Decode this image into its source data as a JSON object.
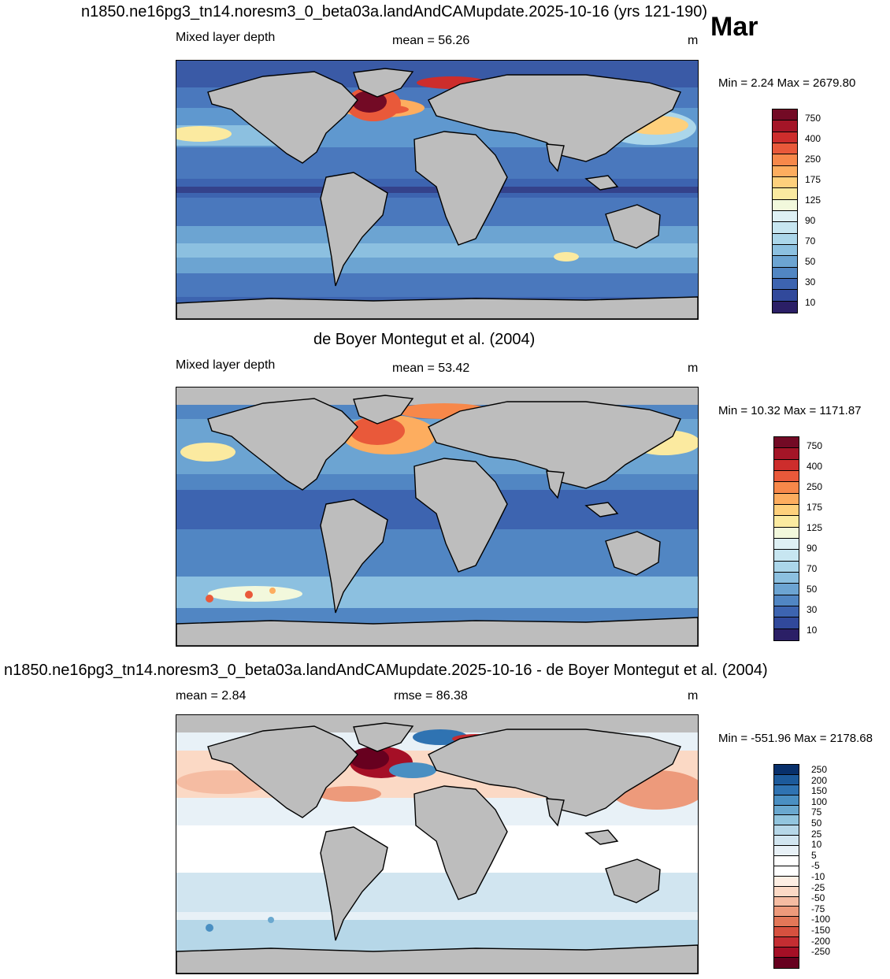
{
  "header": {
    "title": "n1850.ne16pg3_tn14.noresm3_0_beta03a.landAndCAMupdate.2025-10-16 (yrs 121-190)",
    "month": "Mar"
  },
  "panels": [
    {
      "title": "",
      "variable": "Mixed layer depth",
      "stat1": "mean =  56.26",
      "stat2": "",
      "units": "m",
      "minmax": "Min =   2.24 Max = 2679.80",
      "colorbar": {
        "colors": [
          "#2b1f66",
          "#31499b",
          "#3d64b0",
          "#5186c3",
          "#6ca4d2",
          "#8cc0e0",
          "#abd6ea",
          "#c7e6f1",
          "#def0f4",
          "#f2f8dc",
          "#fbeaa0",
          "#fed07c",
          "#fdad5f",
          "#f7884a",
          "#e9593a",
          "#cd2d2c",
          "#a41527",
          "#730a25"
        ],
        "labels": [
          "750",
          "400",
          "250",
          "175",
          "125",
          "90",
          "70",
          "50",
          "30",
          "10"
        ]
      }
    },
    {
      "title": "de Boyer Montegut et al. (2004)",
      "variable": "Mixed layer depth",
      "stat1": "mean =  53.42",
      "stat2": "",
      "units": "m",
      "minmax": "Min =  10.32 Max = 1171.87",
      "colorbar": {
        "colors": [
          "#2b1f66",
          "#31499b",
          "#3d64b0",
          "#5186c3",
          "#6ca4d2",
          "#8cc0e0",
          "#abd6ea",
          "#c7e6f1",
          "#def0f4",
          "#f2f8dc",
          "#fbeaa0",
          "#fed07c",
          "#fdad5f",
          "#f7884a",
          "#e9593a",
          "#cd2d2c",
          "#a41527",
          "#730a25"
        ],
        "labels": [
          "750",
          "400",
          "250",
          "175",
          "125",
          "90",
          "70",
          "50",
          "30",
          "10"
        ]
      }
    },
    {
      "title": "n1850.ne16pg3_tn14.noresm3_0_beta03a.landAndCAMupdate.2025-10-16 - de Boyer Montegut et al. (2004)",
      "variable": "",
      "stat1": "mean =   2.84",
      "stat2": "rmse =  86.38",
      "units": "m",
      "minmax": "Min = -551.96 Max = 2178.68",
      "colorbar": {
        "colors": [
          "#67001f",
          "#a50f26",
          "#c42d32",
          "#d6513f",
          "#e27758",
          "#ed9a7b",
          "#f5bca2",
          "#fbd9c5",
          "#fdeee3",
          "#ffffff",
          "#ffffff",
          "#e8f1f7",
          "#d1e5f0",
          "#b6d7e8",
          "#92c5de",
          "#6aa8cf",
          "#4a8fc2",
          "#2f73b2",
          "#1c5a9b",
          "#08306b"
        ],
        "labels": [
          "250",
          "200",
          "150",
          "100",
          "75",
          "50",
          "25",
          "10",
          "5",
          "-5",
          "-10",
          "-25",
          "-50",
          "-75",
          "-100",
          "-150",
          "-200",
          "-250"
        ]
      }
    }
  ],
  "legend_colors": {
    "land": "#bdbdbd",
    "coast": "#000000",
    "deep_blue": "#31499b",
    "warm_red": "#a41527"
  }
}
